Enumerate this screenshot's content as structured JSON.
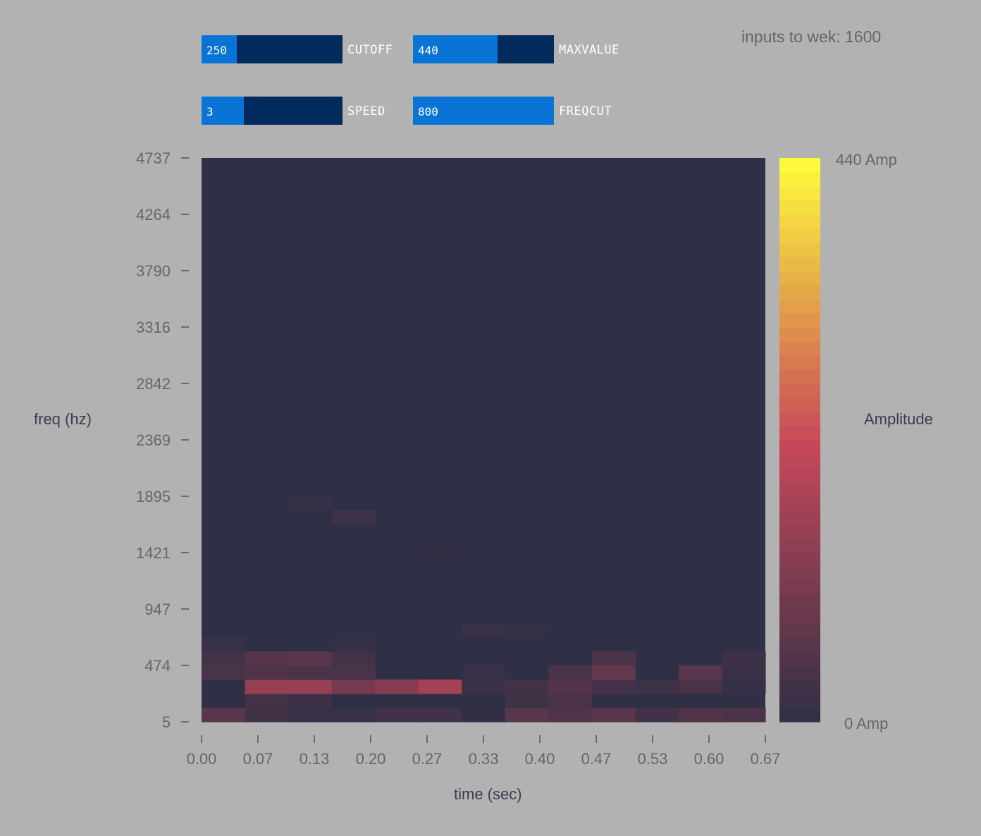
{
  "status": {
    "text": "inputs to wek: 1600"
  },
  "sliders": [
    {
      "id": "cutoff",
      "value_text": "250",
      "label": "CUTOFF",
      "fraction": 0.25
    },
    {
      "id": "maxvalue",
      "value_text": "440",
      "label": "MAXVALUE",
      "fraction": 0.6
    },
    {
      "id": "speed",
      "value_text": "3",
      "label": "SPEED",
      "fraction": 0.3
    },
    {
      "id": "freqcut",
      "value_text": "800",
      "label": "FREQCUT",
      "fraction": 1.0
    }
  ],
  "colors": {
    "background": "#b2b2b2",
    "plot_bg": "#2f2f45",
    "slider_track": "#002b5c",
    "slider_fill": "#0a74d6",
    "colormap_low": "#2f2f45",
    "colormap_mid": "#c9485a",
    "colormap_high": "#ffff3a"
  },
  "chart_data": {
    "type": "heatmap",
    "title": "",
    "xlabel": "time (sec)",
    "ylabel": "freq (hz)",
    "colorbar_label": "Amplitude",
    "colorbar_min_label": "0 Amp",
    "colorbar_max_label": "440 Amp",
    "zlim": [
      0,
      440
    ],
    "x_ticks": [
      "0.00",
      "0.07",
      "0.13",
      "0.20",
      "0.27",
      "0.33",
      "0.40",
      "0.47",
      "0.53",
      "0.60",
      "0.67"
    ],
    "y_ticks": [
      "5",
      "474",
      "947",
      "1421",
      "1895",
      "2369",
      "2842",
      "3316",
      "3790",
      "4264",
      "4737"
    ],
    "time_bins": 13,
    "freq_bins": 40,
    "nonzero_cells": [
      {
        "t": 0,
        "f": 0,
        "v": 60
      },
      {
        "t": 1,
        "f": 0,
        "v": 25
      },
      {
        "t": 2,
        "f": 0,
        "v": 12
      },
      {
        "t": 3,
        "f": 0,
        "v": 12
      },
      {
        "t": 4,
        "f": 0,
        "v": 25
      },
      {
        "t": 5,
        "f": 0,
        "v": 25
      },
      {
        "t": 6,
        "f": 0,
        "v": 4
      },
      {
        "t": 7,
        "f": 0,
        "v": 60
      },
      {
        "t": 8,
        "f": 0,
        "v": 45
      },
      {
        "t": 9,
        "f": 0,
        "v": 60
      },
      {
        "t": 10,
        "f": 0,
        "v": 25
      },
      {
        "t": 11,
        "f": 0,
        "v": 45
      },
      {
        "t": 12,
        "f": 0,
        "v": 38
      },
      {
        "t": 1,
        "f": 1,
        "v": 28
      },
      {
        "t": 2,
        "f": 1,
        "v": 18
      },
      {
        "t": 7,
        "f": 1,
        "v": 22
      },
      {
        "t": 8,
        "f": 1,
        "v": 38
      },
      {
        "t": 1,
        "f": 2,
        "v": 150
      },
      {
        "t": 2,
        "f": 2,
        "v": 150
      },
      {
        "t": 3,
        "f": 2,
        "v": 100
      },
      {
        "t": 4,
        "f": 2,
        "v": 125
      },
      {
        "t": 5,
        "f": 2,
        "v": 165
      },
      {
        "t": 6,
        "f": 2,
        "v": 18
      },
      {
        "t": 7,
        "f": 2,
        "v": 30
      },
      {
        "t": 8,
        "f": 2,
        "v": 50
      },
      {
        "t": 9,
        "f": 2,
        "v": 28
      },
      {
        "t": 10,
        "f": 2,
        "v": 22
      },
      {
        "t": 11,
        "f": 2,
        "v": 38
      },
      {
        "t": 12,
        "f": 2,
        "v": 8
      },
      {
        "t": 0,
        "f": 3,
        "v": 35
      },
      {
        "t": 1,
        "f": 3,
        "v": 45
      },
      {
        "t": 2,
        "f": 3,
        "v": 40
      },
      {
        "t": 3,
        "f": 3,
        "v": 35
      },
      {
        "t": 6,
        "f": 3,
        "v": 12
      },
      {
        "t": 8,
        "f": 3,
        "v": 35
      },
      {
        "t": 9,
        "f": 3,
        "v": 75
      },
      {
        "t": 11,
        "f": 3,
        "v": 60
      },
      {
        "t": 12,
        "f": 3,
        "v": 15
      },
      {
        "t": 0,
        "f": 4,
        "v": 28
      },
      {
        "t": 1,
        "f": 4,
        "v": 55
      },
      {
        "t": 2,
        "f": 4,
        "v": 60
      },
      {
        "t": 3,
        "f": 4,
        "v": 30
      },
      {
        "t": 9,
        "f": 4,
        "v": 40
      },
      {
        "t": 12,
        "f": 4,
        "v": 20
      },
      {
        "t": 0,
        "f": 5,
        "v": 14
      },
      {
        "t": 3,
        "f": 5,
        "v": 10
      },
      {
        "t": 6,
        "f": 6,
        "v": 14
      },
      {
        "t": 7,
        "f": 6,
        "v": 6
      },
      {
        "t": 5,
        "f": 12,
        "v": 4
      },
      {
        "t": 3,
        "f": 14,
        "v": 22
      },
      {
        "t": 2,
        "f": 15,
        "v": 8
      }
    ]
  }
}
